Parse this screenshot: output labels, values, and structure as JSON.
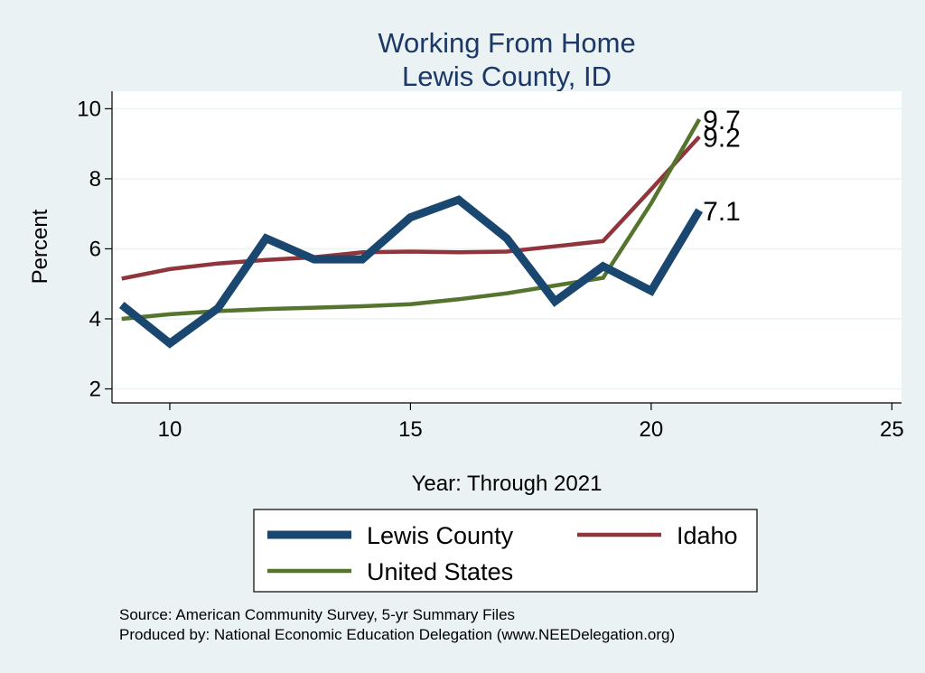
{
  "chart_data": {
    "type": "line",
    "title": "Working From Home",
    "subtitle": "Lewis County, ID",
    "xlabel": "Year: Through 2021",
    "ylabel": "Percent",
    "xlim": [
      8.8,
      25.2
    ],
    "ylim": [
      1.6,
      10.5
    ],
    "xticks": [
      "10",
      "15",
      "20",
      "25"
    ],
    "yticks": [
      "2",
      "4",
      "6",
      "8",
      "10"
    ],
    "xtick_values": [
      10,
      15,
      20,
      25
    ],
    "ytick_values": [
      2,
      4,
      6,
      8,
      10
    ],
    "grid": "horizontal",
    "legend_position": "bottom",
    "x": [
      9,
      10,
      11,
      12,
      13,
      14,
      15,
      16,
      17,
      18,
      19,
      20,
      21
    ],
    "series": [
      {
        "name": "Lewis County",
        "color": "#1a476f",
        "values": [
          4.4,
          3.3,
          4.3,
          6.3,
          5.7,
          5.7,
          6.9,
          7.4,
          6.3,
          4.5,
          5.5,
          4.8,
          7.1
        ],
        "end_label": "7.1"
      },
      {
        "name": "Idaho",
        "color": "#90353b",
        "values": [
          5.15,
          5.42,
          5.58,
          5.68,
          5.76,
          5.9,
          5.92,
          5.9,
          5.92,
          6.07,
          6.22,
          7.7,
          9.2
        ],
        "end_label": "9.2"
      },
      {
        "name": "United States",
        "color": "#55752f",
        "values": [
          4.0,
          4.13,
          4.22,
          4.28,
          4.32,
          4.36,
          4.42,
          4.56,
          4.73,
          4.95,
          5.17,
          7.3,
          9.7
        ],
        "end_label": "9.7"
      }
    ],
    "notes": [
      "Source: American Community Survey, 5-yr Summary Files",
      "Produced by: National Economic Education Delegation (www.NEEDelegation.org)"
    ]
  }
}
